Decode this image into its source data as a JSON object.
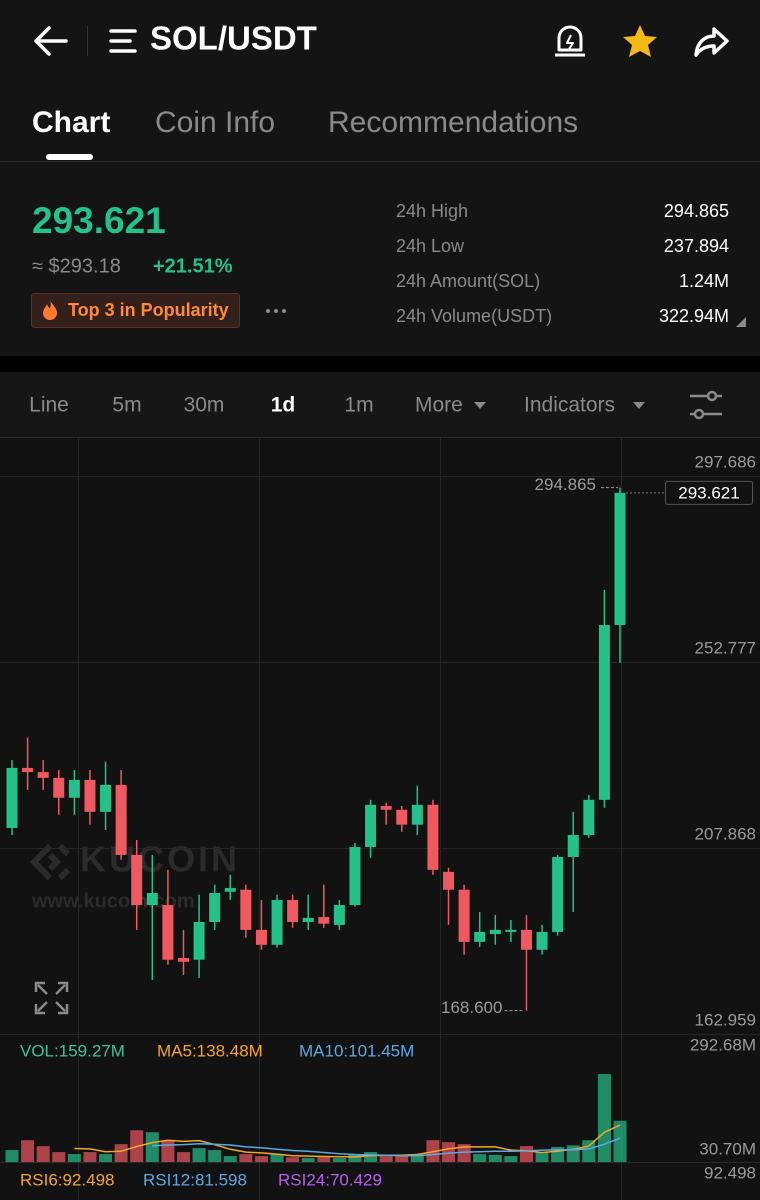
{
  "header": {
    "title": "SOL/USDT"
  },
  "tabs": [
    "Chart",
    "Coin Info",
    "Recommendations"
  ],
  "ticker": {
    "price": "293.621",
    "fiat_price": "≈ $293.18",
    "change": "+21.51%",
    "badge": "Top 3 in Popularity",
    "stats": [
      {
        "label": "24h High",
        "value": "294.865"
      },
      {
        "label": "24h Low",
        "value": "237.894"
      },
      {
        "label": "24h Amount(SOL)",
        "value": "1.24M"
      },
      {
        "label": "24h Volume(USDT)",
        "value": "322.94M"
      }
    ]
  },
  "toolbar": [
    "Line",
    "5m",
    "30m",
    "1d",
    "1m",
    "More",
    "Indicators"
  ],
  "watermark": {
    "brand": "KUCOIN",
    "url": "www.kucoin.com"
  },
  "rsi_panel": {
    "legend": [
      "RSI6:92.498",
      "RSI12:81.598",
      "RSI24:70.429"
    ],
    "axis_label": "92.498"
  },
  "chart_data": [
    {
      "type": "candlestick",
      "up_color": "#25c18b",
      "down_color": "#f0595f",
      "open": [
        212.7,
        227.2,
        226.2,
        224.8,
        220.0,
        224.3,
        216.6,
        223.1,
        206.2,
        194.1,
        194.1,
        181.3,
        180.9,
        190.0,
        197.3,
        197.8,
        188.1,
        184.5,
        195.3,
        190.0,
        191.2,
        189.3,
        194.1,
        208.1,
        218.0,
        217.1,
        213.5,
        218.3,
        202.1,
        197.8,
        185.2,
        187.1,
        187.6,
        188.1,
        183.3,
        187.6,
        205.7,
        211.0,
        219.5,
        261.7
      ],
      "high": [
        229.1,
        234.5,
        229.1,
        226.7,
        226.7,
        226.7,
        228.7,
        226.7,
        209.8,
        206.2,
        202.6,
        188.1,
        196.6,
        199.0,
        201.4,
        199.0,
        195.3,
        196.6,
        196.6,
        196.6,
        199.0,
        195.3,
        209.1,
        219.5,
        218.8,
        218.0,
        222.9,
        219.5,
        203.1,
        199.0,
        192.4,
        191.7,
        190.5,
        191.7,
        189.3,
        206.2,
        216.6,
        220.7,
        270.2,
        294.865
      ],
      "low": [
        211.0,
        221.9,
        221.9,
        215.9,
        215.9,
        213.5,
        212.2,
        205.0,
        188.1,
        176.0,
        179.7,
        177.2,
        176.5,
        188.1,
        195.3,
        186.2,
        183.3,
        183.8,
        188.6,
        188.1,
        188.6,
        188.1,
        193.7,
        205.5,
        213.5,
        211.8,
        211.0,
        201.4,
        189.3,
        182.1,
        184.0,
        184.5,
        185.2,
        168.6,
        182.1,
        186.7,
        192.4,
        210.3,
        217.6,
        252.6
      ],
      "close": [
        227.2,
        226.2,
        224.8,
        220.0,
        224.3,
        216.6,
        223.1,
        206.2,
        194.1,
        197.0,
        180.9,
        180.4,
        190.0,
        197.0,
        198.2,
        188.1,
        184.5,
        195.3,
        190.0,
        191.0,
        189.6,
        194.1,
        208.1,
        218.3,
        217.1,
        213.5,
        218.3,
        202.6,
        197.8,
        185.2,
        187.6,
        188.1,
        188.1,
        183.3,
        187.6,
        205.7,
        211.0,
        219.5,
        261.7,
        293.621
      ],
      "ylim": [
        162.959,
        306.86
      ],
      "yticks": [
        297.686,
        252.777,
        207.868,
        162.959
      ],
      "grid": true,
      "max_label": 294.865,
      "min_label": {
        "value": 168.6,
        "label": "168.600"
      },
      "last_price": 293.621
    },
    {
      "type": "bar",
      "series": [
        {
          "name": "VOL:159.27M",
          "color": "#3fc1a0",
          "values": [
            30,
            55,
            40,
            25,
            20,
            25,
            20,
            45,
            80,
            75,
            55,
            25,
            35,
            30,
            15,
            20,
            15,
            20,
            12,
            10,
            12,
            10,
            20,
            25,
            15,
            15,
            18,
            55,
            50,
            45,
            20,
            18,
            15,
            40,
            25,
            38,
            42,
            55,
            222,
            104
          ]
        },
        {
          "name": "MA5:138.48M",
          "color": "#f5a623",
          "values": [
            null,
            null,
            null,
            null,
            34,
            33,
            26,
            27,
            39,
            49,
            55,
            52,
            54,
            44,
            32,
            25,
            23,
            20,
            16,
            15,
            14,
            13,
            13,
            16,
            17,
            17,
            19,
            26,
            33,
            38,
            38,
            38,
            30,
            28,
            24,
            27,
            32,
            40,
            75,
            93
          ]
        },
        {
          "name": "MA10:101.45M",
          "color": "#5aa9e6",
          "values": [
            null,
            null,
            null,
            null,
            null,
            null,
            null,
            null,
            null,
            41,
            43,
            44,
            46,
            45,
            43,
            38,
            36,
            32,
            29,
            27,
            24,
            21,
            19,
            18,
            17,
            16,
            16,
            19,
            22,
            25,
            26,
            27,
            27,
            28,
            30,
            31,
            31,
            33,
            45,
            60
          ]
        }
      ],
      "ylim": [
        0,
        312.8
      ],
      "yticks": [
        {
          "value": 292.68,
          "label": "292.68M"
        },
        {
          "value": 30.7,
          "label": "30.70M"
        }
      ]
    }
  ]
}
